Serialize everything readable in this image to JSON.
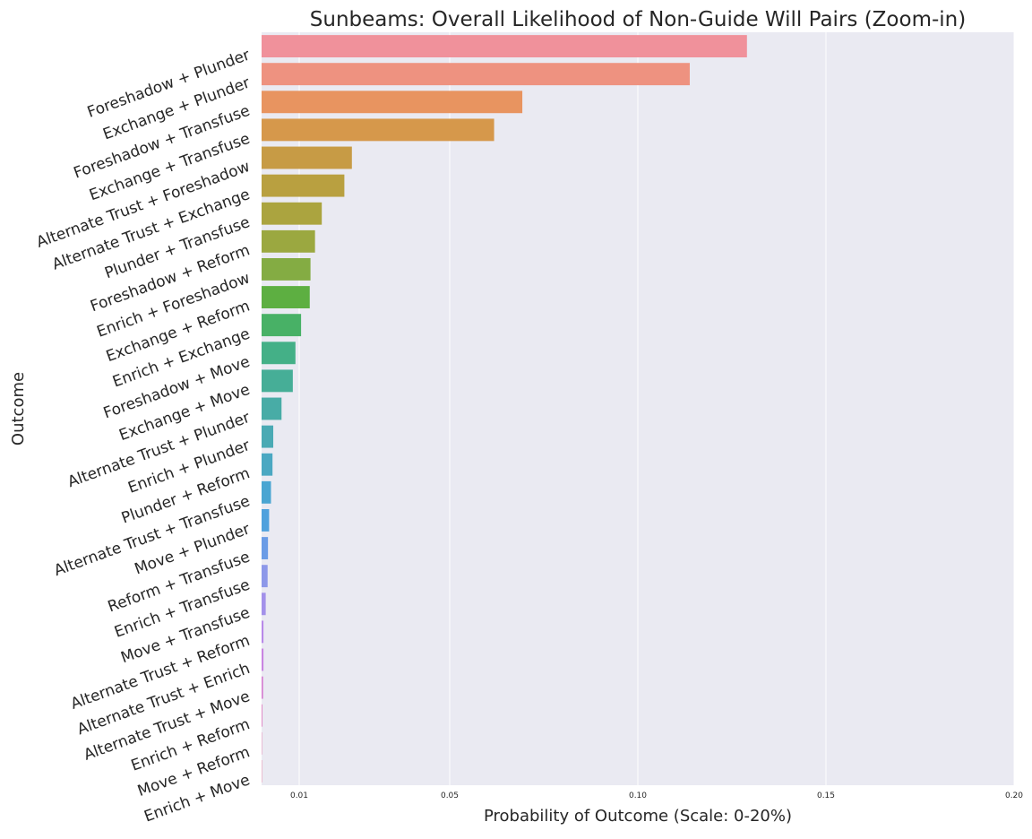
{
  "chart_data": {
    "type": "bar",
    "orientation": "horizontal",
    "title": "Sunbeams: Overall Likelihood of Non-Guide Will Pairs (Zoom-in)",
    "xlabel": "Probability of Outcome (Scale: 0-20%)",
    "ylabel": "Outcome",
    "xlim": [
      0,
      0.2
    ],
    "xticks": [
      0.01,
      0.05,
      0.1,
      0.15,
      0.2
    ],
    "xtick_labels": [
      "0.01",
      "0.05",
      "0.10",
      "0.15",
      "0.20"
    ],
    "grid": true,
    "categories": [
      "Foreshadow + Plunder",
      "Exchange + Plunder",
      "Foreshadow + Transfuse",
      "Exchange + Transfuse",
      "Alternate Trust + Foreshadow",
      "Alternate Trust + Exchange",
      "Plunder + Transfuse",
      "Foreshadow + Reform",
      "Enrich + Foreshadow",
      "Exchange + Reform",
      "Enrich + Exchange",
      "Foreshadow + Move",
      "Exchange + Move",
      "Alternate Trust + Plunder",
      "Enrich + Plunder",
      "Plunder + Reform",
      "Alternate Trust + Transfuse",
      "Move + Plunder",
      "Reform + Transfuse",
      "Enrich + Transfuse",
      "Move + Transfuse",
      "Alternate Trust + Reform",
      "Alternate Trust + Enrich",
      "Alternate Trust + Move",
      "Enrich + Reform",
      "Move + Reform",
      "Enrich + Move"
    ],
    "values": [
      0.129,
      0.1138,
      0.0693,
      0.0618,
      0.024,
      0.022,
      0.016,
      0.0142,
      0.013,
      0.0128,
      0.0105,
      0.009,
      0.0083,
      0.0053,
      0.0031,
      0.0029,
      0.0025,
      0.002,
      0.0017,
      0.0016,
      0.0011,
      0.0005,
      0.0005,
      0.0004,
      0.0002,
      0.0001,
      0.0001
    ],
    "colors": [
      "#f0919b",
      "#ee9280",
      "#e89460",
      "#d6984b",
      "#c79b45",
      "#b9a040",
      "#aba43f",
      "#9ba840",
      "#84ac43",
      "#5daf41",
      "#48b166",
      "#44b087",
      "#46ae97",
      "#48aca6",
      "#4aaab4",
      "#4ba8c2",
      "#4aa5d2",
      "#4fa1dd",
      "#6a9ce6",
      "#8d98e9",
      "#a391ea",
      "#b889e9",
      "#c985e2",
      "#d67fd2",
      "#de7cc0",
      "#e57fb0",
      "#ea84a4"
    ]
  }
}
